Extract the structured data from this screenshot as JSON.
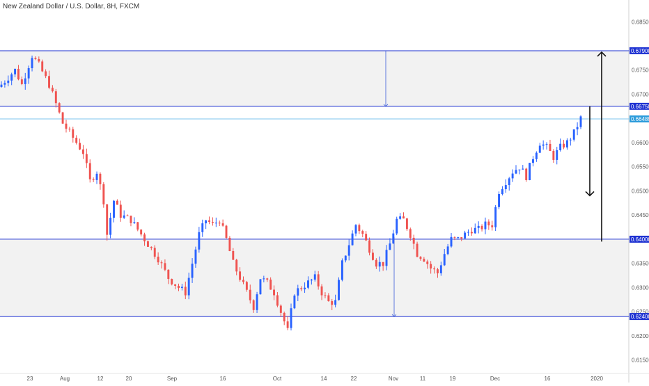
{
  "chart_data": {
    "type": "candlestick",
    "title": "New Zealand Dollar / U.S. Dollar, 8H, FXCM",
    "colors": {
      "up": "#2962ff",
      "down": "#ef5350",
      "level": "#1e32d2",
      "last": "#7ec6ee",
      "zone": "#f2f2f2",
      "axis": "#555555"
    },
    "ylim": [
      0.6125,
      0.6895
    ],
    "y_ticks": [
      "0.61500",
      "0.62000",
      "0.62500",
      "0.63000",
      "0.63500",
      "0.64500",
      "0.65000",
      "0.65500",
      "0.66000",
      "0.67000",
      "0.67500",
      "0.68500"
    ],
    "x_ticks": [
      "23",
      "Aug",
      "12",
      "20",
      "Sep",
      "16",
      "Oct",
      "14",
      "22",
      "Nov",
      "11",
      "19",
      "Dec",
      "16",
      "2020"
    ],
    "levels": [
      {
        "price": "0.67900",
        "value": 0.679
      },
      {
        "price": "0.66750",
        "value": 0.6675
      },
      {
        "price": "0.64000",
        "value": 0.64
      },
      {
        "price": "0.62400",
        "value": 0.624
      }
    ],
    "last_price": {
      "price": "0.66489",
      "value": 0.66489
    },
    "zones": [
      {
        "from": 0.6675,
        "to": 0.679
      },
      {
        "from": 0.624,
        "to": 0.64
      }
    ],
    "close_path": [
      [
        0,
        0.672
      ],
      [
        4,
        0.675
      ],
      [
        6,
        0.672
      ],
      [
        9,
        0.678
      ],
      [
        11,
        0.676
      ],
      [
        14,
        0.672
      ],
      [
        16,
        0.668
      ],
      [
        18,
        0.664
      ],
      [
        20,
        0.662
      ],
      [
        22,
        0.66
      ],
      [
        24,
        0.658
      ],
      [
        26,
        0.652
      ],
      [
        28,
        0.654
      ],
      [
        30,
        0.648
      ],
      [
        31,
        0.641
      ],
      [
        33,
        0.648
      ],
      [
        35,
        0.645
      ],
      [
        38,
        0.644
      ],
      [
        40,
        0.642
      ],
      [
        43,
        0.639
      ],
      [
        46,
        0.636
      ],
      [
        49,
        0.632
      ],
      [
        52,
        0.63
      ],
      [
        54,
        0.629
      ],
      [
        56,
        0.635
      ],
      [
        58,
        0.641
      ],
      [
        60,
        0.644
      ],
      [
        62,
        0.643
      ],
      [
        64,
        0.644
      ],
      [
        66,
        0.64
      ],
      [
        68,
        0.635
      ],
      [
        70,
        0.632
      ],
      [
        72,
        0.629
      ],
      [
        74,
        0.626
      ],
      [
        76,
        0.632
      ],
      [
        78,
        0.631
      ],
      [
        80,
        0.629
      ],
      [
        82,
        0.625
      ],
      [
        84,
        0.621
      ],
      [
        86,
        0.629
      ],
      [
        88,
        0.63
      ],
      [
        90,
        0.631
      ],
      [
        92,
        0.632
      ],
      [
        94,
        0.629
      ],
      [
        96,
        0.627
      ],
      [
        98,
        0.627
      ],
      [
        100,
        0.635
      ],
      [
        102,
        0.639
      ],
      [
        104,
        0.643
      ],
      [
        106,
        0.641
      ],
      [
        108,
        0.638
      ],
      [
        110,
        0.635
      ],
      [
        112,
        0.635
      ],
      [
        114,
        0.639
      ],
      [
        116,
        0.644
      ],
      [
        118,
        0.644
      ],
      [
        120,
        0.641
      ],
      [
        122,
        0.637
      ],
      [
        124,
        0.636
      ],
      [
        126,
        0.634
      ],
      [
        128,
        0.633
      ],
      [
        130,
        0.637
      ],
      [
        132,
        0.64
      ],
      [
        134,
        0.64
      ],
      [
        136,
        0.641
      ],
      [
        138,
        0.642
      ],
      [
        140,
        0.642
      ],
      [
        142,
        0.643
      ],
      [
        144,
        0.643
      ],
      [
        146,
        0.65
      ],
      [
        148,
        0.652
      ],
      [
        150,
        0.654
      ],
      [
        152,
        0.655
      ],
      [
        154,
        0.653
      ],
      [
        156,
        0.657
      ],
      [
        158,
        0.66
      ],
      [
        160,
        0.659
      ],
      [
        162,
        0.657
      ],
      [
        164,
        0.659
      ],
      [
        166,
        0.66
      ],
      [
        168,
        0.662
      ],
      [
        170,
        0.665
      ]
    ],
    "count": 171,
    "x_start": "2019-07-19",
    "x_end": "2019-12-27",
    "annotations": [
      {
        "type": "arrow",
        "direction": "up",
        "from": 0.6395,
        "to": 0.679
      },
      {
        "type": "arrow",
        "direction": "down",
        "from": 0.6675,
        "to": 0.649
      },
      {
        "type": "arrow",
        "direction": "down",
        "from": 0.679,
        "to": 0.6675
      },
      {
        "type": "arrow",
        "direction": "down",
        "from": 0.6405,
        "to": 0.624
      }
    ]
  }
}
